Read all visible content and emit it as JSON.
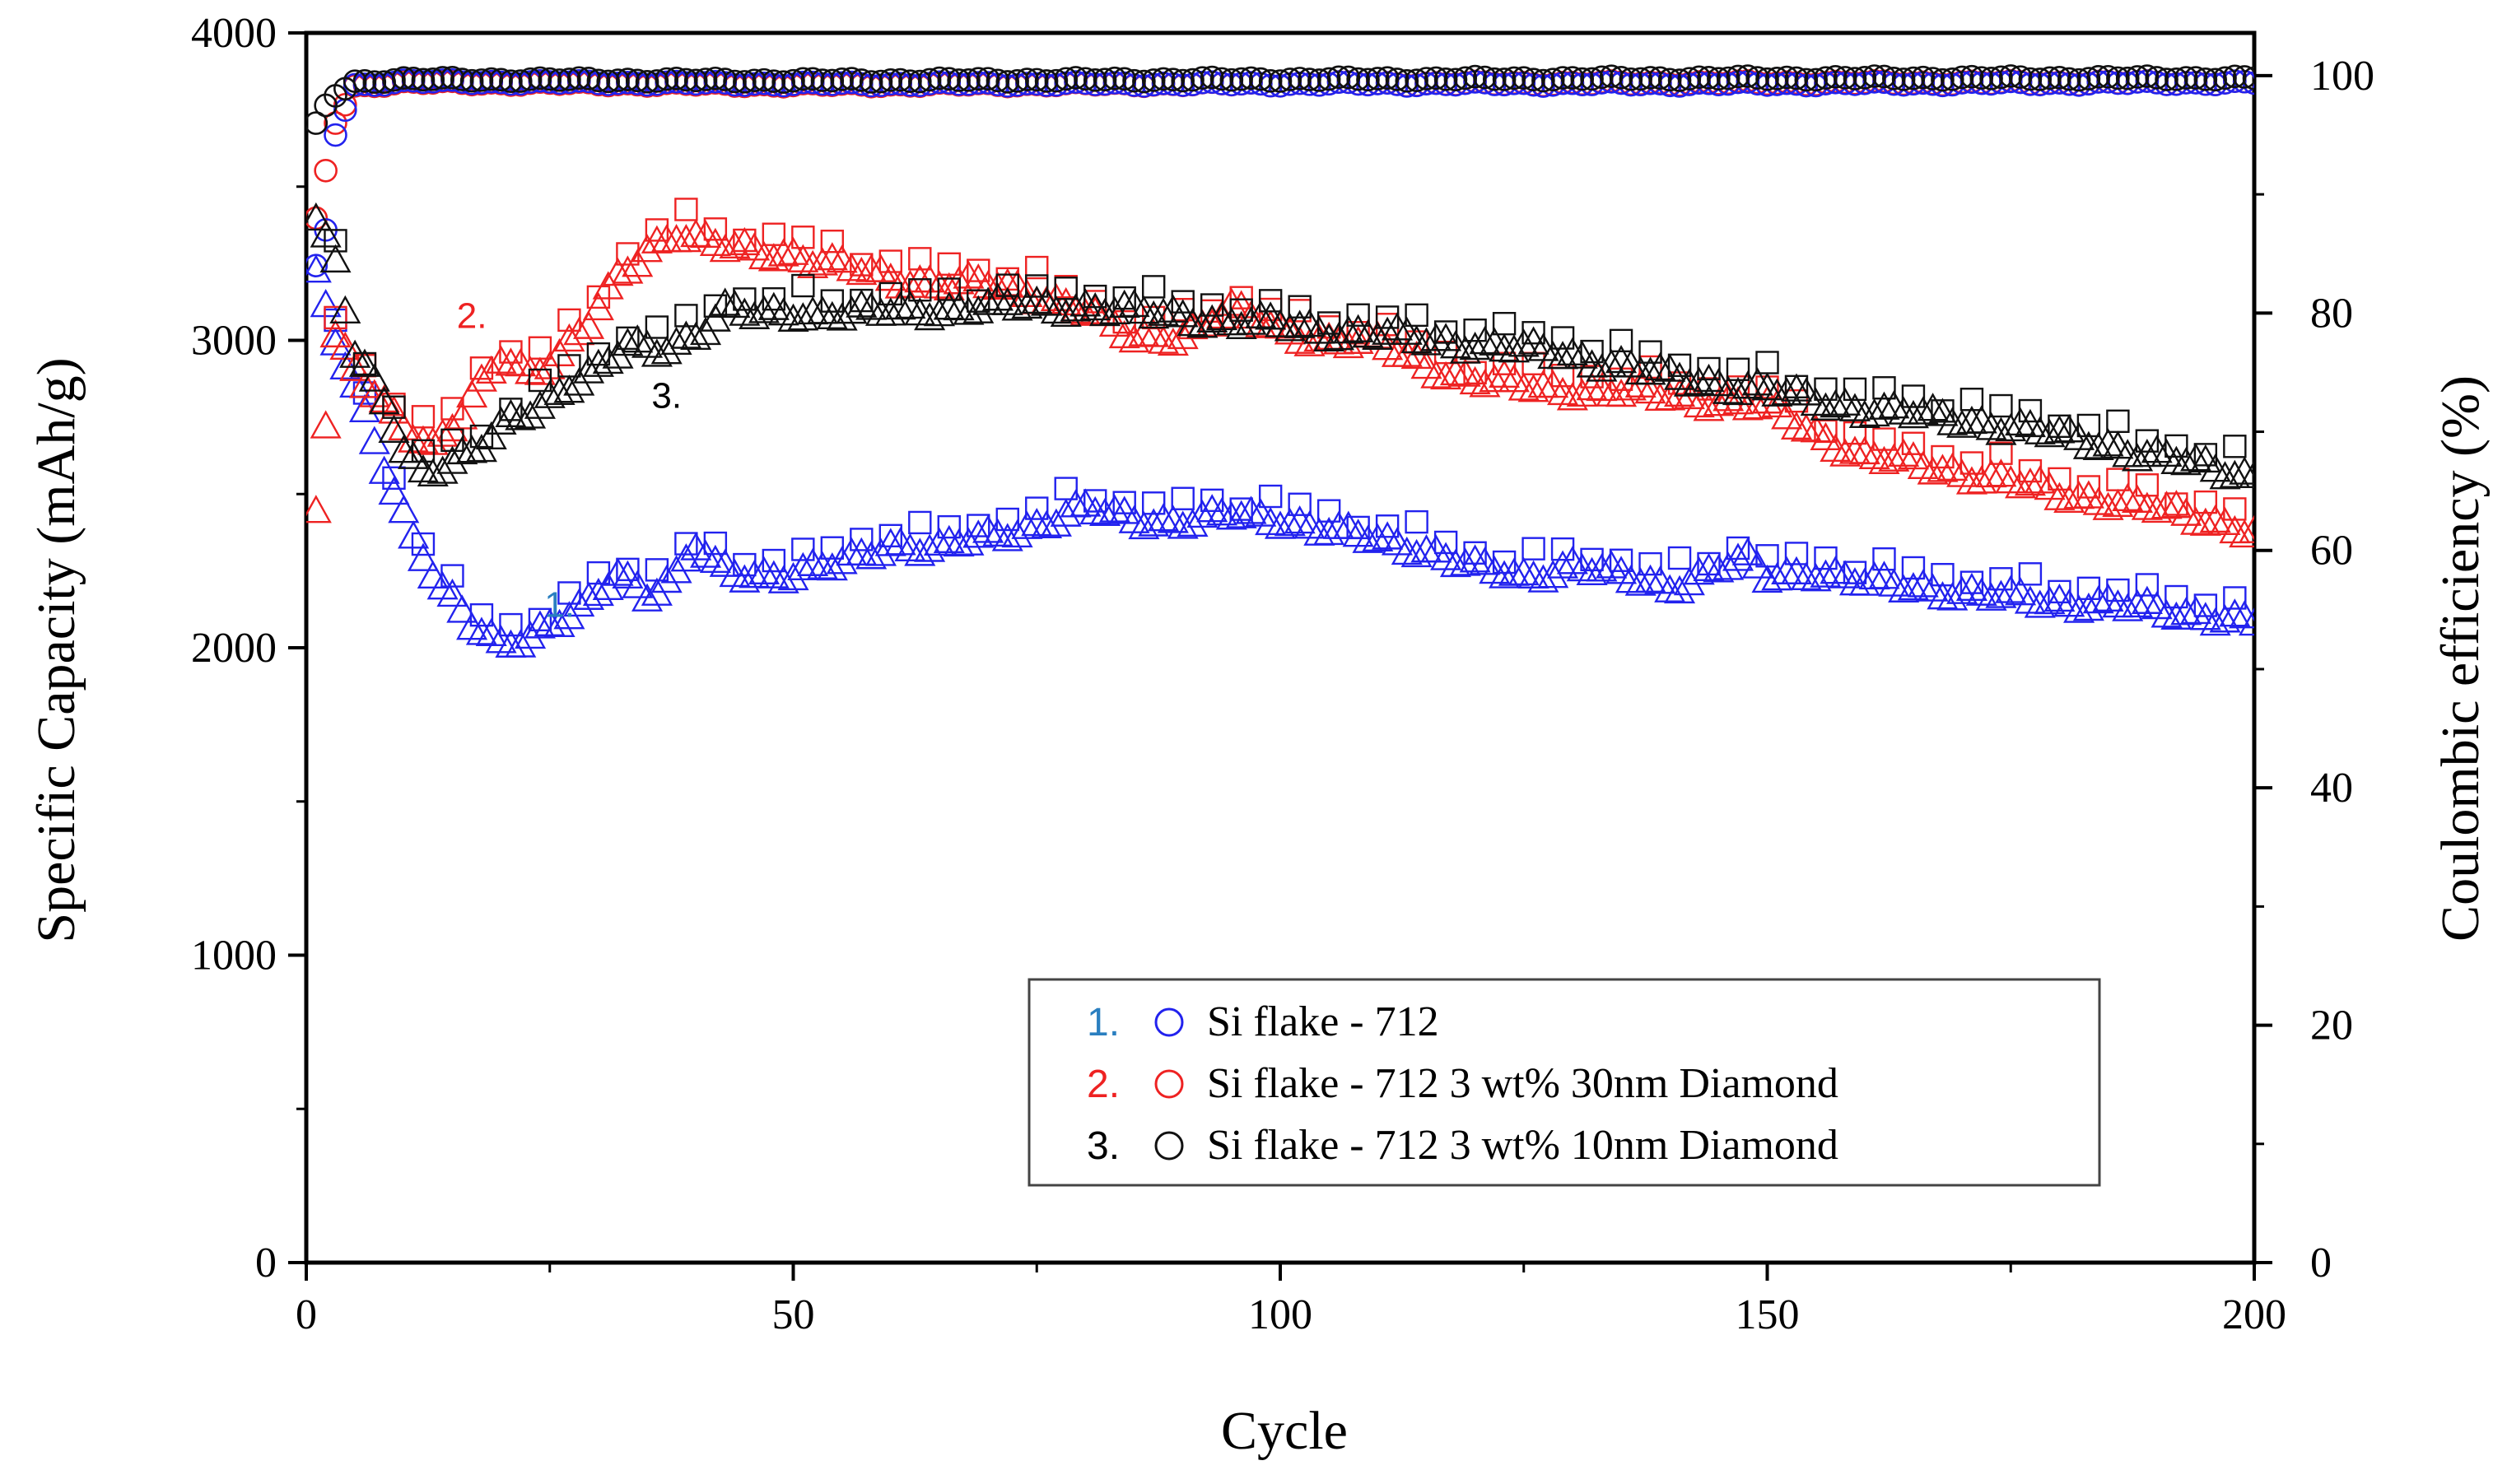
{
  "chart_data": {
    "type": "scatter",
    "xlabel": "Cycle",
    "ylabel_left": "Specific Capacity (mAh/g)",
    "ylabel_right": "Coulombic efficiency (%)",
    "xlim": [
      0,
      200
    ],
    "ylim_left": [
      0,
      4000
    ],
    "ylim_right": [
      0,
      103.6
    ],
    "x_ticks": [
      "0",
      "50",
      "100",
      "150",
      "200"
    ],
    "y_left_ticks": [
      "0",
      "1000",
      "2000",
      "3000",
      "4000"
    ],
    "y_right_ticks": [
      "0",
      "20",
      "40",
      "60",
      "80",
      "100"
    ],
    "grid": false,
    "legend_position": "bottom-right",
    "series": [
      {
        "id": "s1",
        "number": "1.",
        "name": "Si flake - 712",
        "color": "#2222ee",
        "number_color": "#2a7fc0",
        "annotation": {
          "text": "1.",
          "x": 26,
          "capacity": 2100
        },
        "capacity_points": [
          [
            1,
            3200
          ],
          [
            3,
            3000
          ],
          [
            5,
            2850
          ],
          [
            8,
            2600
          ],
          [
            11,
            2350
          ],
          [
            14,
            2180
          ],
          [
            17,
            2080
          ],
          [
            20,
            2020
          ],
          [
            23,
            2040
          ],
          [
            26,
            2080
          ],
          [
            29,
            2140
          ],
          [
            32,
            2250
          ],
          [
            35,
            2180
          ],
          [
            38,
            2230
          ],
          [
            40,
            2330
          ],
          [
            42,
            2260
          ],
          [
            45,
            2240
          ],
          [
            50,
            2240
          ],
          [
            55,
            2270
          ],
          [
            60,
            2340
          ],
          [
            65,
            2320
          ],
          [
            70,
            2360
          ],
          [
            75,
            2400
          ],
          [
            80,
            2450
          ],
          [
            85,
            2420
          ],
          [
            90,
            2410
          ],
          [
            95,
            2430
          ],
          [
            100,
            2420
          ],
          [
            105,
            2380
          ],
          [
            110,
            2350
          ],
          [
            115,
            2320
          ],
          [
            120,
            2260
          ],
          [
            125,
            2230
          ],
          [
            130,
            2270
          ],
          [
            135,
            2230
          ],
          [
            140,
            2200
          ],
          [
            145,
            2260
          ],
          [
            148,
            2280
          ],
          [
            150,
            2230
          ],
          [
            155,
            2250
          ],
          [
            160,
            2210
          ],
          [
            165,
            2200
          ],
          [
            170,
            2180
          ],
          [
            175,
            2160
          ],
          [
            180,
            2150
          ],
          [
            185,
            2140
          ],
          [
            190,
            2120
          ],
          [
            195,
            2110
          ],
          [
            200,
            2080
          ]
        ],
        "ce_points": [
          [
            1,
            84
          ],
          [
            2,
            87
          ],
          [
            3,
            95
          ],
          [
            5,
            99.2
          ],
          [
            10,
            99.5
          ],
          [
            50,
            99.3
          ],
          [
            100,
            99.3
          ],
          [
            150,
            99.3
          ],
          [
            200,
            99.4
          ]
        ]
      },
      {
        "id": "s2",
        "number": "2.",
        "name": "Si flake - 712 3 wt%  30nm Diamond",
        "color": "#ee2222",
        "number_color": "#ee2222",
        "annotation": {
          "text": "2.",
          "x": 17,
          "capacity": 3040
        },
        "capacity_points": [
          [
            1,
            2450
          ],
          [
            3,
            3000
          ],
          [
            5,
            2900
          ],
          [
            8,
            2800
          ],
          [
            11,
            2700
          ],
          [
            13,
            2650
          ],
          [
            16,
            2750
          ],
          [
            18,
            2850
          ],
          [
            20,
            2950
          ],
          [
            23,
            2900
          ],
          [
            26,
            2950
          ],
          [
            29,
            3050
          ],
          [
            32,
            3200
          ],
          [
            35,
            3300
          ],
          [
            38,
            3350
          ],
          [
            40,
            3330
          ],
          [
            43,
            3300
          ],
          [
            46,
            3290
          ],
          [
            50,
            3280
          ],
          [
            55,
            3240
          ],
          [
            60,
            3200
          ],
          [
            65,
            3190
          ],
          [
            70,
            3180
          ],
          [
            75,
            3150
          ],
          [
            80,
            3100
          ],
          [
            85,
            3000
          ],
          [
            90,
            3020
          ],
          [
            95,
            3100
          ],
          [
            100,
            3030
          ],
          [
            105,
            3000
          ],
          [
            110,
            2990
          ],
          [
            115,
            2920
          ],
          [
            120,
            2870
          ],
          [
            125,
            2850
          ],
          [
            130,
            2840
          ],
          [
            135,
            2830
          ],
          [
            140,
            2820
          ],
          [
            145,
            2800
          ],
          [
            150,
            2780
          ],
          [
            155,
            2700
          ],
          [
            160,
            2620
          ],
          [
            165,
            2600
          ],
          [
            170,
            2570
          ],
          [
            175,
            2540
          ],
          [
            180,
            2500
          ],
          [
            185,
            2480
          ],
          [
            190,
            2450
          ],
          [
            195,
            2420
          ],
          [
            200,
            2380
          ]
        ],
        "ce_points": [
          [
            1,
            88
          ],
          [
            2,
            92
          ],
          [
            3,
            96
          ],
          [
            5,
            99.1
          ],
          [
            10,
            99.4
          ],
          [
            50,
            99.2
          ],
          [
            100,
            99.3
          ],
          [
            150,
            99.4
          ],
          [
            200,
            99.4
          ]
        ]
      },
      {
        "id": "s3",
        "number": "3.",
        "name": "Si flake - 712 3 wt%  10nm Diamond",
        "color": "#111111",
        "number_color": "#000000",
        "annotation": {
          "text": "3.",
          "x": 37,
          "capacity": 2780
        },
        "capacity_points": [
          [
            1,
            3400
          ],
          [
            3,
            3250
          ],
          [
            5,
            2950
          ],
          [
            8,
            2800
          ],
          [
            10,
            2650
          ],
          [
            12,
            2580
          ],
          [
            15,
            2600
          ],
          [
            18,
            2650
          ],
          [
            21,
            2740
          ],
          [
            24,
            2790
          ],
          [
            27,
            2860
          ],
          [
            30,
            2900
          ],
          [
            33,
            2980
          ],
          [
            36,
            2970
          ],
          [
            40,
            3020
          ],
          [
            43,
            3100
          ],
          [
            46,
            3080
          ],
          [
            50,
            3090
          ],
          [
            55,
            3090
          ],
          [
            60,
            3090
          ],
          [
            65,
            3100
          ],
          [
            70,
            3110
          ],
          [
            75,
            3110
          ],
          [
            80,
            3110
          ],
          [
            85,
            3090
          ],
          [
            90,
            3080
          ],
          [
            95,
            3060
          ],
          [
            100,
            3050
          ],
          [
            105,
            3030
          ],
          [
            110,
            3020
          ],
          [
            115,
            3000
          ],
          [
            120,
            2990
          ],
          [
            125,
            2970
          ],
          [
            130,
            2950
          ],
          [
            135,
            2920
          ],
          [
            140,
            2880
          ],
          [
            145,
            2860
          ],
          [
            150,
            2840
          ],
          [
            155,
            2800
          ],
          [
            160,
            2780
          ],
          [
            165,
            2760
          ],
          [
            170,
            2740
          ],
          [
            175,
            2720
          ],
          [
            180,
            2690
          ],
          [
            185,
            2660
          ],
          [
            190,
            2620
          ],
          [
            195,
            2590
          ],
          [
            200,
            2560
          ]
        ],
        "ce_points": [
          [
            1,
            96
          ],
          [
            2,
            97.5
          ],
          [
            3,
            98.3
          ],
          [
            5,
            99.5
          ],
          [
            10,
            99.7
          ],
          [
            50,
            99.6
          ],
          [
            100,
            99.7
          ],
          [
            150,
            99.8
          ],
          [
            200,
            99.8
          ]
        ]
      }
    ]
  }
}
